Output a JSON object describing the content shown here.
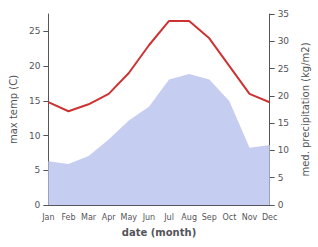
{
  "chart_data": {
    "type": "line",
    "xlabel": "date (month)",
    "ylabel": "max temp (C)",
    "y2label": "med. precipitation (kg/m2)",
    "categories": [
      "Jan",
      "Feb",
      "Mar",
      "Apr",
      "May",
      "Jun",
      "Jul",
      "Aug",
      "Sep",
      "Oct",
      "Nov",
      "Dec"
    ],
    "series": [
      {
        "type": "area",
        "axis": "y2",
        "color": "#c5cdf0",
        "values": [
          8.0,
          7.5,
          9.0,
          12.0,
          15.5,
          18.0,
          23.0,
          24.0,
          23.0,
          19.0,
          10.5,
          11.0
        ]
      },
      {
        "type": "line",
        "color": "#cc3333",
        "values": [
          14.8,
          13.5,
          14.5,
          16.0,
          19.0,
          23.0,
          26.5,
          26.5,
          24.0,
          20.0,
          16.0,
          14.8
        ]
      }
    ],
    "ylim": [
      0,
      27.5
    ],
    "yticks": [
      0,
      5,
      10,
      15,
      20,
      25
    ],
    "y2lim": [
      0,
      35
    ],
    "y2ticks": [
      0,
      5,
      10,
      15,
      20,
      25,
      30,
      35
    ],
    "grid": false
  }
}
